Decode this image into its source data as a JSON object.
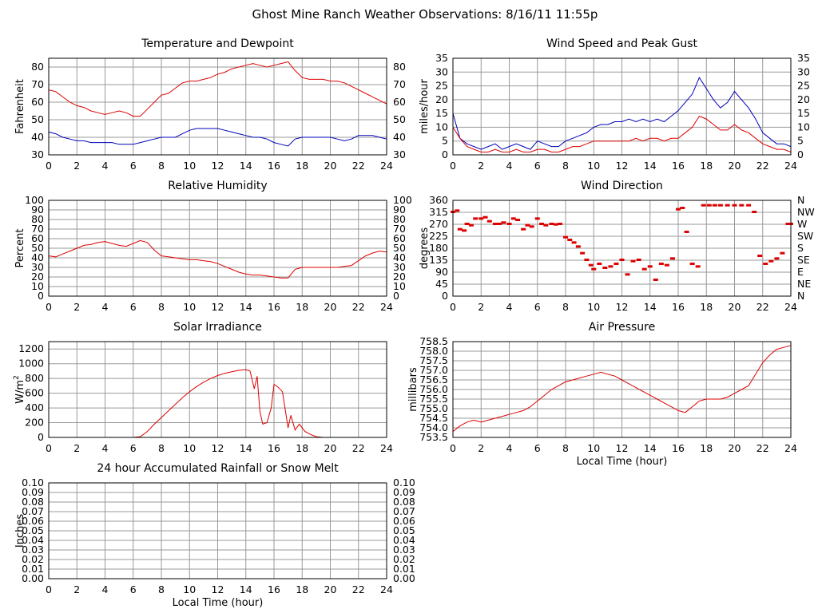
{
  "title": "Ghost Mine Ranch Weather Observations: 8/16/11 11:55p",
  "colors": {
    "primary": "#dd0000",
    "secondary": "#0000bb",
    "grid": "#999999"
  },
  "chart_data": [
    {
      "id": "temperature",
      "type": "line",
      "title": "Temperature and Dewpoint",
      "xlabel": "",
      "ylabel": "Fahrenheit",
      "xlim": [
        0,
        24
      ],
      "ylim": [
        30,
        85
      ],
      "x_ticks": [
        0,
        2,
        4,
        6,
        8,
        10,
        12,
        14,
        16,
        18,
        20,
        22,
        24
      ],
      "y_ticks": [
        30,
        40,
        50,
        60,
        70,
        80
      ],
      "right_y_ticks": [
        30,
        40,
        50,
        60,
        70,
        80
      ],
      "grid": true,
      "series": [
        {
          "color": "#dd0000",
          "x": [
            0,
            0.5,
            1,
            1.5,
            2,
            2.5,
            3,
            3.5,
            4,
            4.5,
            5,
            5.5,
            6,
            6.5,
            7,
            7.5,
            8,
            8.5,
            9,
            9.5,
            10,
            10.5,
            11,
            11.5,
            12,
            12.5,
            13,
            13.5,
            14,
            14.5,
            15,
            15.5,
            16,
            16.5,
            17,
            17.5,
            18,
            18.5,
            19,
            19.5,
            20,
            20.5,
            21,
            21.5,
            22,
            22.5,
            23,
            23.5,
            24
          ],
          "y": [
            67,
            66,
            63,
            60,
            58,
            57,
            55,
            54,
            53,
            54,
            55,
            54,
            52,
            52,
            56,
            60,
            64,
            65,
            68,
            71,
            72,
            72,
            73,
            74,
            76,
            77,
            79,
            80,
            81,
            82,
            81,
            80,
            81,
            82,
            83,
            78,
            74,
            73,
            73,
            73,
            72,
            72,
            71,
            69,
            67,
            65,
            63,
            61,
            59
          ]
        },
        {
          "color": "#0000bb",
          "x": [
            0,
            0.5,
            1,
            1.5,
            2,
            2.5,
            3,
            3.5,
            4,
            4.5,
            5,
            5.5,
            6,
            6.5,
            7,
            7.5,
            8,
            8.5,
            9,
            9.5,
            10,
            10.5,
            11,
            11.5,
            12,
            12.5,
            13,
            13.5,
            14,
            14.5,
            15,
            15.5,
            16,
            16.5,
            17,
            17.5,
            18,
            18.5,
            19,
            19.5,
            20,
            20.5,
            21,
            21.5,
            22,
            22.5,
            23,
            23.5,
            24
          ],
          "y": [
            43,
            42,
            40,
            39,
            38,
            38,
            37,
            37,
            37,
            37,
            36,
            36,
            36,
            37,
            38,
            39,
            40,
            40,
            40,
            42,
            44,
            45,
            45,
            45,
            45,
            44,
            43,
            42,
            41,
            40,
            40,
            39,
            37,
            36,
            35,
            39,
            40,
            40,
            40,
            40,
            40,
            39,
            38,
            39,
            41,
            41,
            41,
            40,
            39
          ]
        }
      ]
    },
    {
      "id": "wind-speed",
      "type": "line",
      "title": "Wind Speed and Peak Gust",
      "xlabel": "",
      "ylabel": "miles/hour",
      "xlim": [
        0,
        24
      ],
      "ylim": [
        0,
        35
      ],
      "x_ticks": [
        0,
        2,
        4,
        6,
        8,
        10,
        12,
        14,
        16,
        18,
        20,
        22,
        24
      ],
      "y_ticks": [
        0,
        5,
        10,
        15,
        20,
        25,
        30,
        35
      ],
      "right_y_ticks": [
        0,
        5,
        10,
        15,
        20,
        25,
        30,
        35
      ],
      "grid": true,
      "series": [
        {
          "color": "#0000bb",
          "x": [
            0,
            0.5,
            1,
            1.5,
            2,
            2.5,
            3,
            3.5,
            4,
            4.5,
            5,
            5.5,
            6,
            6.5,
            7,
            7.5,
            8,
            8.5,
            9,
            9.5,
            10,
            10.5,
            11,
            11.5,
            12,
            12.5,
            13,
            13.5,
            14,
            14.5,
            15,
            15.5,
            16,
            16.5,
            17,
            17.5,
            18,
            18.5,
            19,
            19.5,
            20,
            20.5,
            21,
            21.5,
            22,
            22.5,
            23,
            23.5,
            24
          ],
          "y": [
            15,
            6,
            4,
            3,
            2,
            3,
            4,
            2,
            3,
            4,
            3,
            2,
            5,
            4,
            3,
            3,
            5,
            6,
            7,
            8,
            10,
            11,
            11,
            12,
            12,
            13,
            12,
            13,
            12,
            13,
            12,
            14,
            16,
            19,
            22,
            28,
            24,
            20,
            17,
            19,
            23,
            20,
            17,
            13,
            8,
            6,
            4,
            4,
            3
          ]
        },
        {
          "color": "#dd0000",
          "x": [
            0,
            0.5,
            1,
            1.5,
            2,
            2.5,
            3,
            3.5,
            4,
            4.5,
            5,
            5.5,
            6,
            6.5,
            7,
            7.5,
            8,
            8.5,
            9,
            9.5,
            10,
            10.5,
            11,
            11.5,
            12,
            12.5,
            13,
            13.5,
            14,
            14.5,
            15,
            15.5,
            16,
            16.5,
            17,
            17.5,
            18,
            18.5,
            19,
            19.5,
            20,
            20.5,
            21,
            21.5,
            22,
            22.5,
            23,
            23.5,
            24
          ],
          "y": [
            10,
            6,
            3,
            2,
            1,
            1,
            2,
            1,
            1,
            2,
            1,
            1,
            2,
            2,
            1,
            1,
            2,
            3,
            3,
            4,
            5,
            5,
            5,
            5,
            5,
            5,
            6,
            5,
            6,
            6,
            5,
            6,
            6,
            8,
            10,
            14,
            13,
            11,
            9,
            9,
            11,
            9,
            8,
            6,
            4,
            3,
            2,
            2,
            1
          ]
        }
      ]
    },
    {
      "id": "humidity",
      "type": "line",
      "title": "Relative Humidity",
      "xlabel": "",
      "ylabel": "Percent",
      "xlim": [
        0,
        24
      ],
      "ylim": [
        0,
        100
      ],
      "x_ticks": [
        0,
        2,
        4,
        6,
        8,
        10,
        12,
        14,
        16,
        18,
        20,
        22,
        24
      ],
      "y_ticks": [
        0,
        10,
        20,
        30,
        40,
        50,
        60,
        70,
        80,
        90,
        100
      ],
      "right_y_ticks": [
        0,
        10,
        20,
        30,
        40,
        50,
        60,
        70,
        80,
        90,
        100
      ],
      "grid": true,
      "series": [
        {
          "color": "#dd0000",
          "x": [
            0,
            0.5,
            1,
            1.5,
            2,
            2.5,
            3,
            3.5,
            4,
            4.5,
            5,
            5.5,
            6,
            6.5,
            7,
            7.5,
            8,
            8.5,
            9,
            9.5,
            10,
            10.5,
            11,
            11.5,
            12,
            12.5,
            13,
            13.5,
            14,
            14.5,
            15,
            15.5,
            16,
            16.5,
            17,
            17.5,
            18,
            18.5,
            19,
            19.5,
            20,
            20.5,
            21,
            21.5,
            22,
            22.5,
            23,
            23.5,
            24
          ],
          "y": [
            42,
            41,
            44,
            47,
            50,
            53,
            54,
            56,
            57,
            55,
            53,
            52,
            55,
            58,
            56,
            48,
            42,
            41,
            40,
            39,
            38,
            38,
            37,
            36,
            34,
            31,
            28,
            25,
            23,
            22,
            22,
            21,
            20,
            19,
            19,
            28,
            30,
            30,
            30,
            30,
            30,
            30,
            31,
            32,
            37,
            42,
            45,
            47,
            46
          ]
        }
      ]
    },
    {
      "id": "wind-direction",
      "type": "scatter",
      "title": "Wind Direction",
      "xlabel": "",
      "ylabel": "degrees",
      "xlim": [
        0,
        24
      ],
      "ylim": [
        0,
        360
      ],
      "x_ticks": [
        0,
        2,
        4,
        6,
        8,
        10,
        12,
        14,
        16,
        18,
        20,
        22,
        24
      ],
      "y_ticks": [
        0,
        45,
        90,
        135,
        180,
        225,
        270,
        315,
        360
      ],
      "right_y_ticks": [
        "N",
        "NE",
        "E",
        "SE",
        "S",
        "SW",
        "W",
        "NW",
        "N"
      ],
      "grid": true,
      "series": [
        {
          "color": "#dd0000",
          "x": [
            0,
            0.3,
            0.5,
            0.8,
            1,
            1.3,
            1.6,
            2,
            2.3,
            2.6,
            3,
            3.3,
            3.6,
            4,
            4.3,
            4.6,
            5,
            5.3,
            5.6,
            6,
            6.3,
            6.6,
            7,
            7.3,
            7.6,
            8,
            8.3,
            8.6,
            8.9,
            9.2,
            9.5,
            9.8,
            10,
            10.4,
            10.8,
            11.2,
            11.6,
            12,
            12.4,
            12.8,
            13.2,
            13.6,
            14,
            14.4,
            14.8,
            15.2,
            15.6,
            16,
            16.3,
            16.6,
            17,
            17.4,
            17.8,
            18.2,
            18.6,
            19,
            19.5,
            20,
            20.5,
            21,
            21.4,
            21.8,
            22.2,
            22.6,
            23,
            23.4,
            23.8,
            24
          ],
          "y": [
            315,
            320,
            250,
            245,
            270,
            265,
            290,
            290,
            295,
            280,
            270,
            270,
            275,
            270,
            290,
            285,
            250,
            265,
            260,
            290,
            270,
            265,
            270,
            268,
            270,
            220,
            210,
            200,
            185,
            160,
            135,
            115,
            100,
            120,
            105,
            110,
            120,
            135,
            80,
            130,
            135,
            100,
            110,
            60,
            120,
            115,
            140,
            325,
            330,
            240,
            120,
            110,
            340,
            340,
            340,
            340,
            340,
            340,
            340,
            340,
            315,
            150,
            120,
            130,
            140,
            160,
            270,
            270
          ]
        }
      ]
    },
    {
      "id": "solar",
      "type": "line",
      "title": "Solar Irradiance",
      "xlabel": "",
      "ylabel": "W/m",
      "ylabel_sup": "2",
      "xlim": [
        0,
        24
      ],
      "ylim": [
        0,
        1300
      ],
      "x_ticks": [
        0,
        2,
        4,
        6,
        8,
        10,
        12,
        14,
        16,
        18,
        20,
        22,
        24
      ],
      "y_ticks": [
        0,
        200,
        400,
        600,
        800,
        1000,
        1200
      ],
      "grid": true,
      "series": [
        {
          "color": "#dd0000",
          "x": [
            0,
            1,
            2,
            3,
            4,
            5,
            6,
            6.5,
            7,
            7.5,
            8,
            8.5,
            9,
            9.5,
            10,
            10.5,
            11,
            11.5,
            12,
            12.5,
            13,
            13.5,
            14,
            14.3,
            14.6,
            14.8,
            15,
            15.2,
            15.5,
            15.8,
            16,
            16.3,
            16.6,
            17,
            17.2,
            17.5,
            17.8,
            18.2,
            18.6,
            19,
            19.5,
            20,
            21,
            22,
            23,
            24
          ],
          "y": [
            0,
            0,
            0,
            0,
            0,
            0,
            0,
            10,
            80,
            180,
            270,
            360,
            450,
            540,
            620,
            690,
            750,
            800,
            840,
            870,
            890,
            910,
            920,
            900,
            660,
            830,
            350,
            180,
            200,
            400,
            720,
            680,
            620,
            130,
            300,
            100,
            180,
            80,
            40,
            10,
            0,
            0,
            0,
            0,
            0,
            0
          ]
        }
      ]
    },
    {
      "id": "pressure",
      "type": "line",
      "title": "Air Pressure",
      "xlabel": "Local Time (hour)",
      "ylabel": "millibars",
      "xlim": [
        0,
        24
      ],
      "ylim": [
        753.5,
        758.5
      ],
      "x_ticks": [
        0,
        2,
        4,
        6,
        8,
        10,
        12,
        14,
        16,
        18,
        20,
        22,
        24
      ],
      "y_ticks": [
        "753.5",
        "754.0",
        "754.5",
        "755.0",
        "755.5",
        "756.0",
        "756.5",
        "757.0",
        "757.5",
        "758.0",
        "758.5"
      ],
      "grid": true,
      "series": [
        {
          "color": "#dd0000",
          "x": [
            0,
            0.5,
            1,
            1.5,
            2,
            2.5,
            3,
            3.5,
            4,
            4.5,
            5,
            5.5,
            6,
            6.5,
            7,
            7.5,
            8,
            8.5,
            9,
            9.5,
            10,
            10.5,
            11,
            11.5,
            12,
            12.5,
            13,
            13.5,
            14,
            14.5,
            15,
            15.5,
            16,
            16.5,
            17,
            17.5,
            18,
            18.5,
            19,
            19.5,
            20,
            20.5,
            21,
            21.5,
            22,
            22.5,
            23,
            23.5,
            24
          ],
          "y": [
            753.8,
            754.1,
            754.3,
            754.4,
            754.3,
            754.4,
            754.5,
            754.6,
            754.7,
            754.8,
            754.9,
            755.1,
            755.4,
            755.7,
            756.0,
            756.2,
            756.4,
            756.5,
            756.6,
            756.7,
            756.8,
            756.9,
            756.8,
            756.7,
            756.5,
            756.3,
            756.1,
            755.9,
            755.7,
            755.5,
            755.3,
            755.1,
            754.9,
            754.8,
            755.1,
            755.4,
            755.5,
            755.5,
            755.5,
            755.6,
            755.8,
            756.0,
            756.2,
            756.8,
            757.4,
            757.8,
            758.1,
            758.2,
            758.3
          ]
        }
      ]
    },
    {
      "id": "rainfall",
      "type": "line",
      "title": "24 hour Accumulated Rainfall or Snow Melt",
      "xlabel": "Local Time (hour)",
      "ylabel": "Inches",
      "xlim": [
        0,
        24
      ],
      "ylim": [
        0,
        0.1
      ],
      "x_ticks": [
        0,
        2,
        4,
        6,
        8,
        10,
        12,
        14,
        16,
        18,
        20,
        22,
        24
      ],
      "y_ticks": [
        "0.00",
        "0.01",
        "0.02",
        "0.03",
        "0.04",
        "0.05",
        "0.06",
        "0.07",
        "0.08",
        "0.09",
        "0.10"
      ],
      "right_y_ticks": [
        "0.00",
        "0.01",
        "0.02",
        "0.03",
        "0.04",
        "0.05",
        "0.06",
        "0.07",
        "0.08",
        "0.09",
        "0.10"
      ],
      "grid": true,
      "series": [
        {
          "color": "#dd0000",
          "x": [
            0,
            24
          ],
          "y": [
            0,
            0
          ]
        }
      ]
    }
  ]
}
